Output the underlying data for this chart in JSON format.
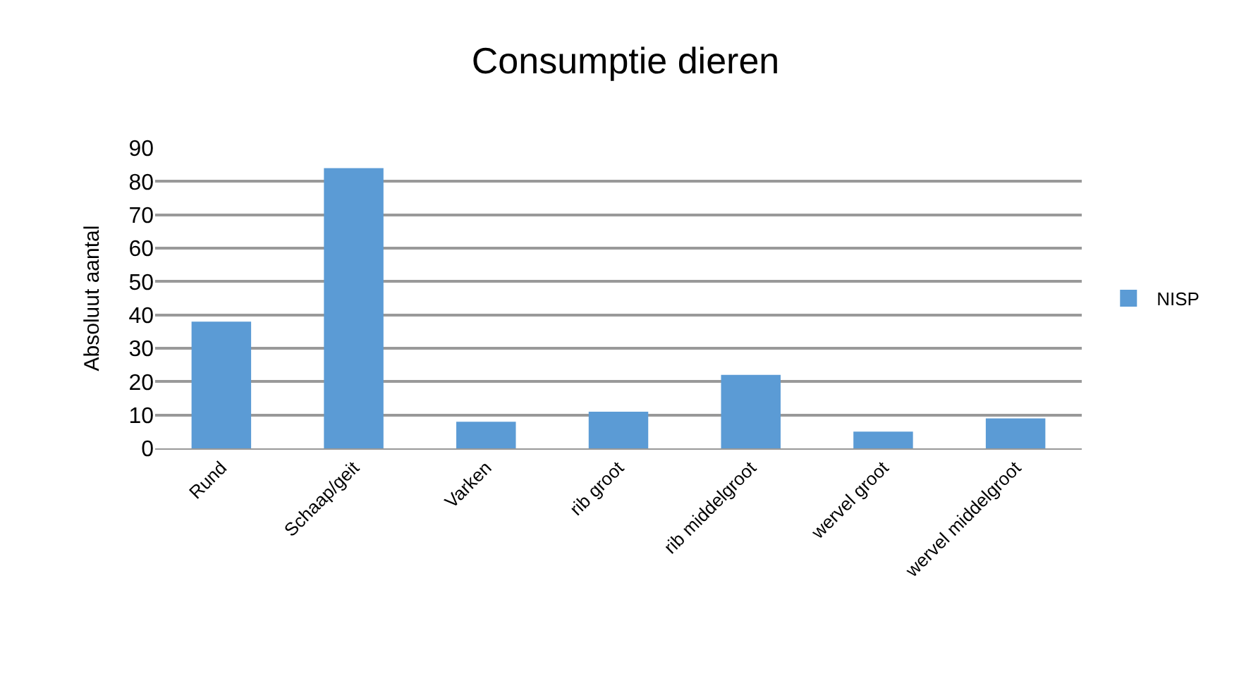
{
  "chart_data": {
    "type": "bar",
    "title": "Consumptie dieren",
    "ylabel": "Absoluut aantal",
    "categories": [
      "Rund",
      "Schaap/geit",
      "Varken",
      "rib groot",
      "rib middelgroot",
      "wervel groot",
      "wervel middelgroot"
    ],
    "series": [
      {
        "name": "NISP",
        "color": "#5b9bd5",
        "values": [
          38,
          84,
          8,
          11,
          22,
          5,
          9
        ]
      }
    ],
    "ylim": [
      0,
      90
    ],
    "yticks": [
      0,
      10,
      20,
      30,
      40,
      50,
      60,
      70,
      80,
      90
    ],
    "grid": "y",
    "legend": "right"
  }
}
